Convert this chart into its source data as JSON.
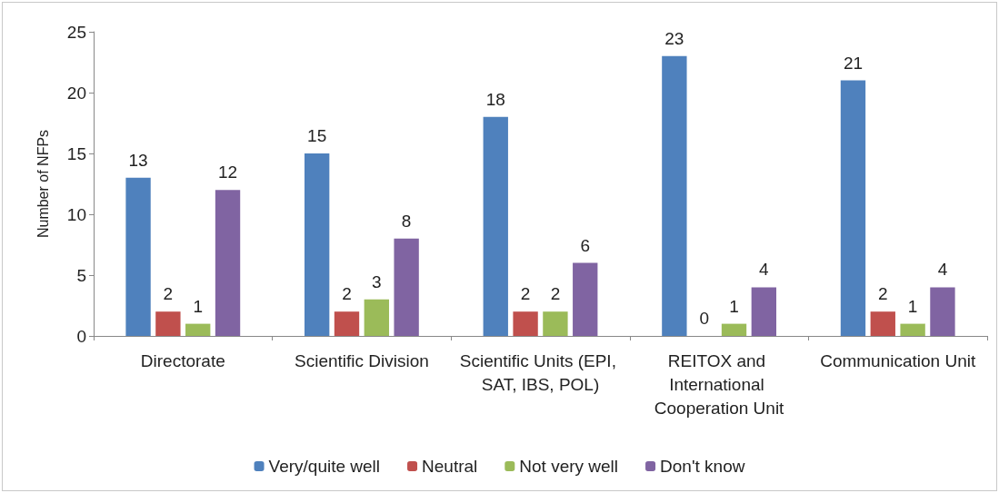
{
  "chart_data": {
    "type": "bar",
    "ylabel": "Number of NFPs",
    "categories": [
      "Directorate",
      "Scientific Division",
      "Scientific Units (EPI, SAT, IBS, POL)",
      "REITOX and International Cooperation Unit",
      "Communication Unit"
    ],
    "series": [
      {
        "name": "Very/quite well",
        "color": "#4f81bd",
        "values": [
          13,
          15,
          18,
          23,
          21
        ]
      },
      {
        "name": "Neutral",
        "color": "#c0504d",
        "values": [
          2,
          2,
          2,
          0,
          2
        ]
      },
      {
        "name": "Not very well",
        "color": "#9bbb59",
        "values": [
          1,
          3,
          2,
          1,
          1
        ]
      },
      {
        "name": "Don't know",
        "color": "#8064a2",
        "values": [
          12,
          8,
          6,
          4,
          4
        ]
      }
    ],
    "ylim": [
      0,
      25
    ],
    "yticks": [
      0,
      5,
      10,
      15,
      20,
      25
    ],
    "grid": false,
    "legend": "bottom",
    "data_labels": true
  }
}
